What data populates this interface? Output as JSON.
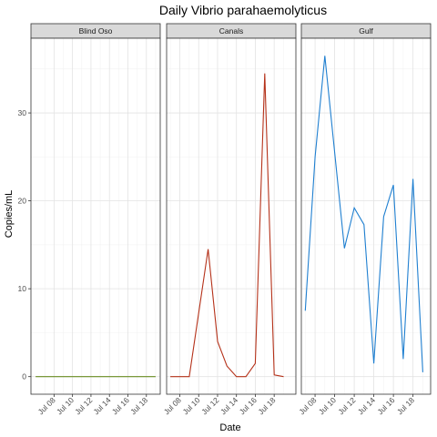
{
  "chart_data": {
    "type": "line",
    "title": "Daily Vibrio parahaemolyticus",
    "xlabel": "Date",
    "ylabel": "Copies/mL",
    "ylim": [
      -2,
      38.5
    ],
    "y_ticks": [
      0,
      10,
      20,
      30
    ],
    "x_tick_labels": [
      "Jul 08",
      "Jul 10",
      "Jul 12",
      "Jul 14",
      "Jul 16",
      "Jul 18"
    ],
    "x_tick_days": [
      8,
      10,
      12,
      14,
      16,
      18
    ],
    "grid": true,
    "facets": [
      {
        "name": "Blind Oso",
        "color": "#6b8e23",
        "xlim": [
          5.5,
          19.5
        ],
        "points": [
          [
            "2020-07-06",
            0
          ],
          [
            "2020-07-07",
            0
          ],
          [
            "2020-07-08",
            0
          ],
          [
            "2020-07-09",
            0
          ],
          [
            "2020-07-10",
            0
          ],
          [
            "2020-07-11",
            0
          ],
          [
            "2020-07-12",
            0
          ],
          [
            "2020-07-13",
            0
          ],
          [
            "2020-07-14",
            0
          ],
          [
            "2020-07-15",
            0
          ],
          [
            "2020-07-16",
            0
          ],
          [
            "2020-07-17",
            0
          ],
          [
            "2020-07-18",
            0
          ],
          [
            "2020-07-19",
            0
          ]
        ]
      },
      {
        "name": "Canals",
        "color": "#b5321a",
        "xlim": [
          6.6,
          20.3
        ],
        "points": [
          [
            "2020-07-07",
            0
          ],
          [
            "2020-07-08",
            0
          ],
          [
            "2020-07-09",
            0
          ],
          [
            "2020-07-11",
            14.5
          ],
          [
            "2020-07-12",
            4
          ],
          [
            "2020-07-13",
            1.2
          ],
          [
            "2020-07-14",
            0
          ],
          [
            "2020-07-15",
            0
          ],
          [
            "2020-07-16",
            1.5
          ],
          [
            "2020-07-17",
            34.5
          ],
          [
            "2020-07-18",
            0.2
          ],
          [
            "2020-07-19",
            0
          ]
        ]
      },
      {
        "name": "Gulf",
        "color": "#1f7fd0",
        "xlim": [
          6.6,
          19.8
        ],
        "points": [
          [
            "2020-07-07",
            7.5
          ],
          [
            "2020-07-08",
            25
          ],
          [
            "2020-07-09",
            36.5
          ],
          [
            "2020-07-11",
            14.6
          ],
          [
            "2020-07-12",
            19.2
          ],
          [
            "2020-07-13",
            17.3
          ],
          [
            "2020-07-14",
            1.5
          ],
          [
            "2020-07-15",
            18.2
          ],
          [
            "2020-07-16",
            21.8
          ],
          [
            "2020-07-17",
            2
          ],
          [
            "2020-07-18",
            22.5
          ],
          [
            "2020-07-19",
            0.5
          ]
        ]
      }
    ]
  }
}
